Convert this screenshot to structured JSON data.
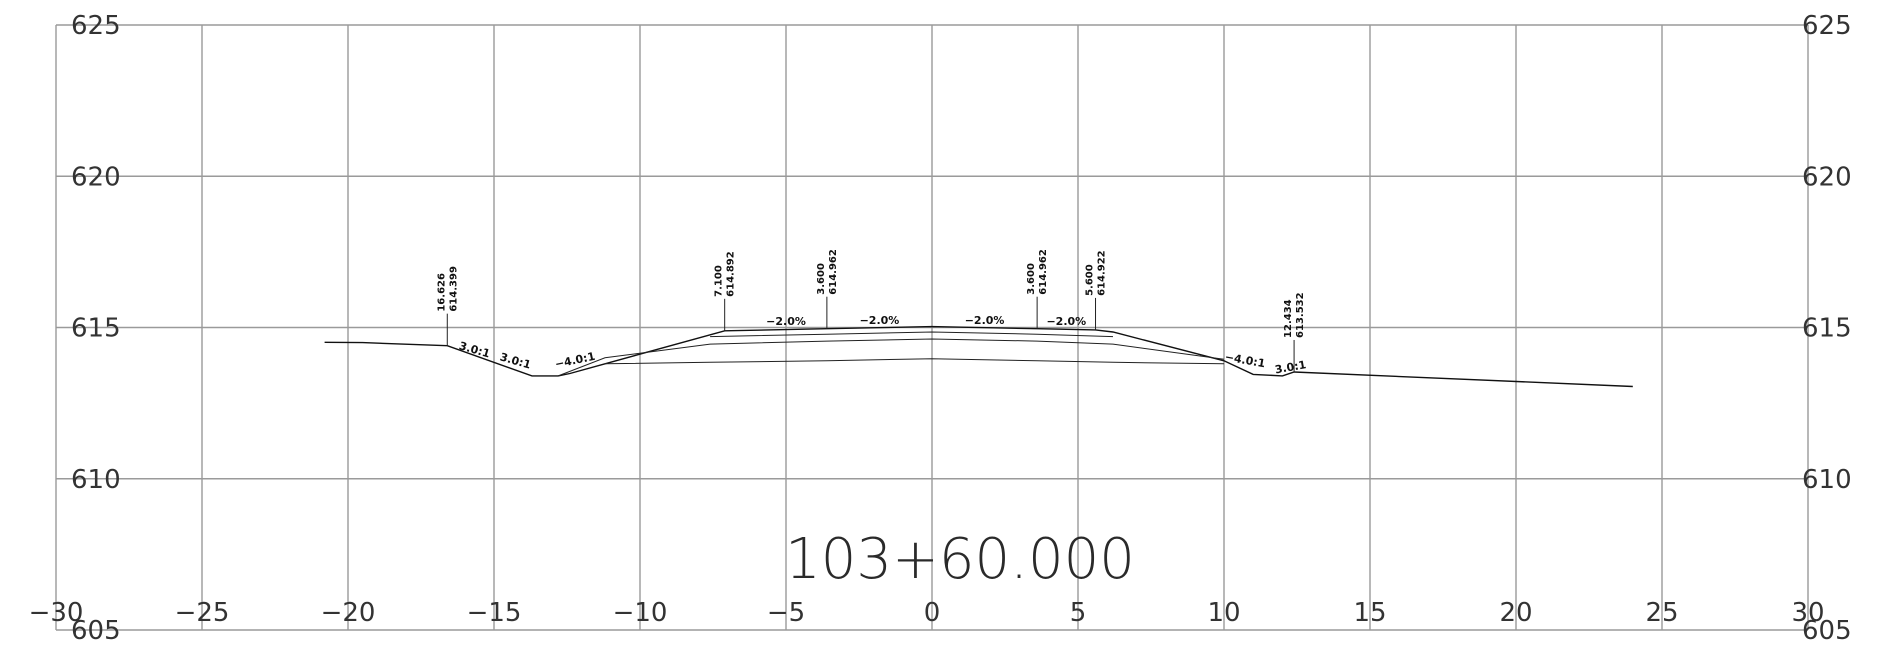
{
  "chart_data": {
    "type": "line",
    "title": "103+60.000",
    "xlabel": "",
    "ylabel": "",
    "xlim": [
      -30,
      30
    ],
    "ylim": [
      605,
      625
    ],
    "x_ticks": [
      -30,
      -25,
      -20,
      -15,
      -10,
      -5,
      0,
      5,
      10,
      15,
      20,
      25,
      30
    ],
    "x_tick_labels": [
      "−30",
      "−25",
      "−20",
      "−15",
      "−10",
      "−5",
      "0",
      "5",
      "10",
      "15",
      "20",
      "25",
      "30"
    ],
    "y_ticks": [
      605,
      610,
      615,
      620,
      625
    ],
    "y_tick_labels": [
      "605",
      "610",
      "615",
      "620",
      "625"
    ],
    "grid": true,
    "series": [
      {
        "x": [
          -20.8,
          -19.5,
          -16.6,
          -13.7,
          -12.8,
          -12.4,
          -11.2,
          -7.1,
          -3.6,
          0,
          3.6,
          5.6,
          6.2,
          10.0,
          11.0,
          12.0,
          12.4,
          24.0
        ],
        "y": [
          614.51,
          614.5,
          614.4,
          613.4,
          613.4,
          613.48,
          613.8,
          614.89,
          614.96,
          615.03,
          614.96,
          614.92,
          614.85,
          613.9,
          613.45,
          613.4,
          613.53,
          613.05
        ]
      },
      {
        "x": [
          -11.2,
          -7.6,
          -3.6,
          0,
          3.6,
          6.2,
          10.0
        ],
        "y": [
          613.8,
          613.85,
          613.9,
          613.97,
          613.9,
          613.85,
          613.8
        ]
      },
      {
        "x": [
          -12.8,
          -11.2,
          -7.6,
          -3.6,
          0,
          3.6,
          6.2,
          10.0
        ],
        "y": [
          613.4,
          614.0,
          614.45,
          614.55,
          614.62,
          614.55,
          614.45,
          613.95
        ]
      },
      {
        "x": [
          -7.6,
          -3.6,
          0,
          3.6,
          6.2
        ],
        "y": [
          614.7,
          614.78,
          614.85,
          614.78,
          614.7
        ]
      }
    ],
    "annotations": {
      "offsets": [
        {
          "x": -16.6,
          "y": 614.4,
          "top": "16.626",
          "bottom": "614.399"
        },
        {
          "x": -7.1,
          "y": 614.89,
          "top": "7.100",
          "bottom": "614.892"
        },
        {
          "x": -3.6,
          "y": 614.96,
          "top": "3.600",
          "bottom": "614.962"
        },
        {
          "x": 3.6,
          "y": 614.96,
          "top": "3.600",
          "bottom": "614.962"
        },
        {
          "x": 5.6,
          "y": 614.92,
          "top": "5.600",
          "bottom": "614.922"
        },
        {
          "x": 12.4,
          "y": 613.53,
          "top": "12.434",
          "bottom": "613.532"
        }
      ],
      "slopes": [
        {
          "x": -15.7,
          "y": 614.15,
          "text": "3.0:1",
          "angle": 16
        },
        {
          "x": -14.3,
          "y": 613.78,
          "text": "3.0:1",
          "angle": 16
        },
        {
          "x": -12.2,
          "y": 613.8,
          "text": "−4.0:1",
          "angle": -12
        },
        {
          "x": -5.0,
          "y": 615.08,
          "text": "−2.0%",
          "angle": 0
        },
        {
          "x": -1.8,
          "y": 615.12,
          "text": "−2.0%",
          "angle": 0
        },
        {
          "x": 1.8,
          "y": 615.12,
          "text": "−2.0%",
          "angle": 0
        },
        {
          "x": 4.6,
          "y": 615.08,
          "text": "−2.0%",
          "angle": 0
        },
        {
          "x": 10.7,
          "y": 613.8,
          "text": "−4.0:1",
          "angle": 10
        },
        {
          "x": 12.3,
          "y": 613.57,
          "text": "3.0:1",
          "angle": -10
        }
      ]
    }
  }
}
